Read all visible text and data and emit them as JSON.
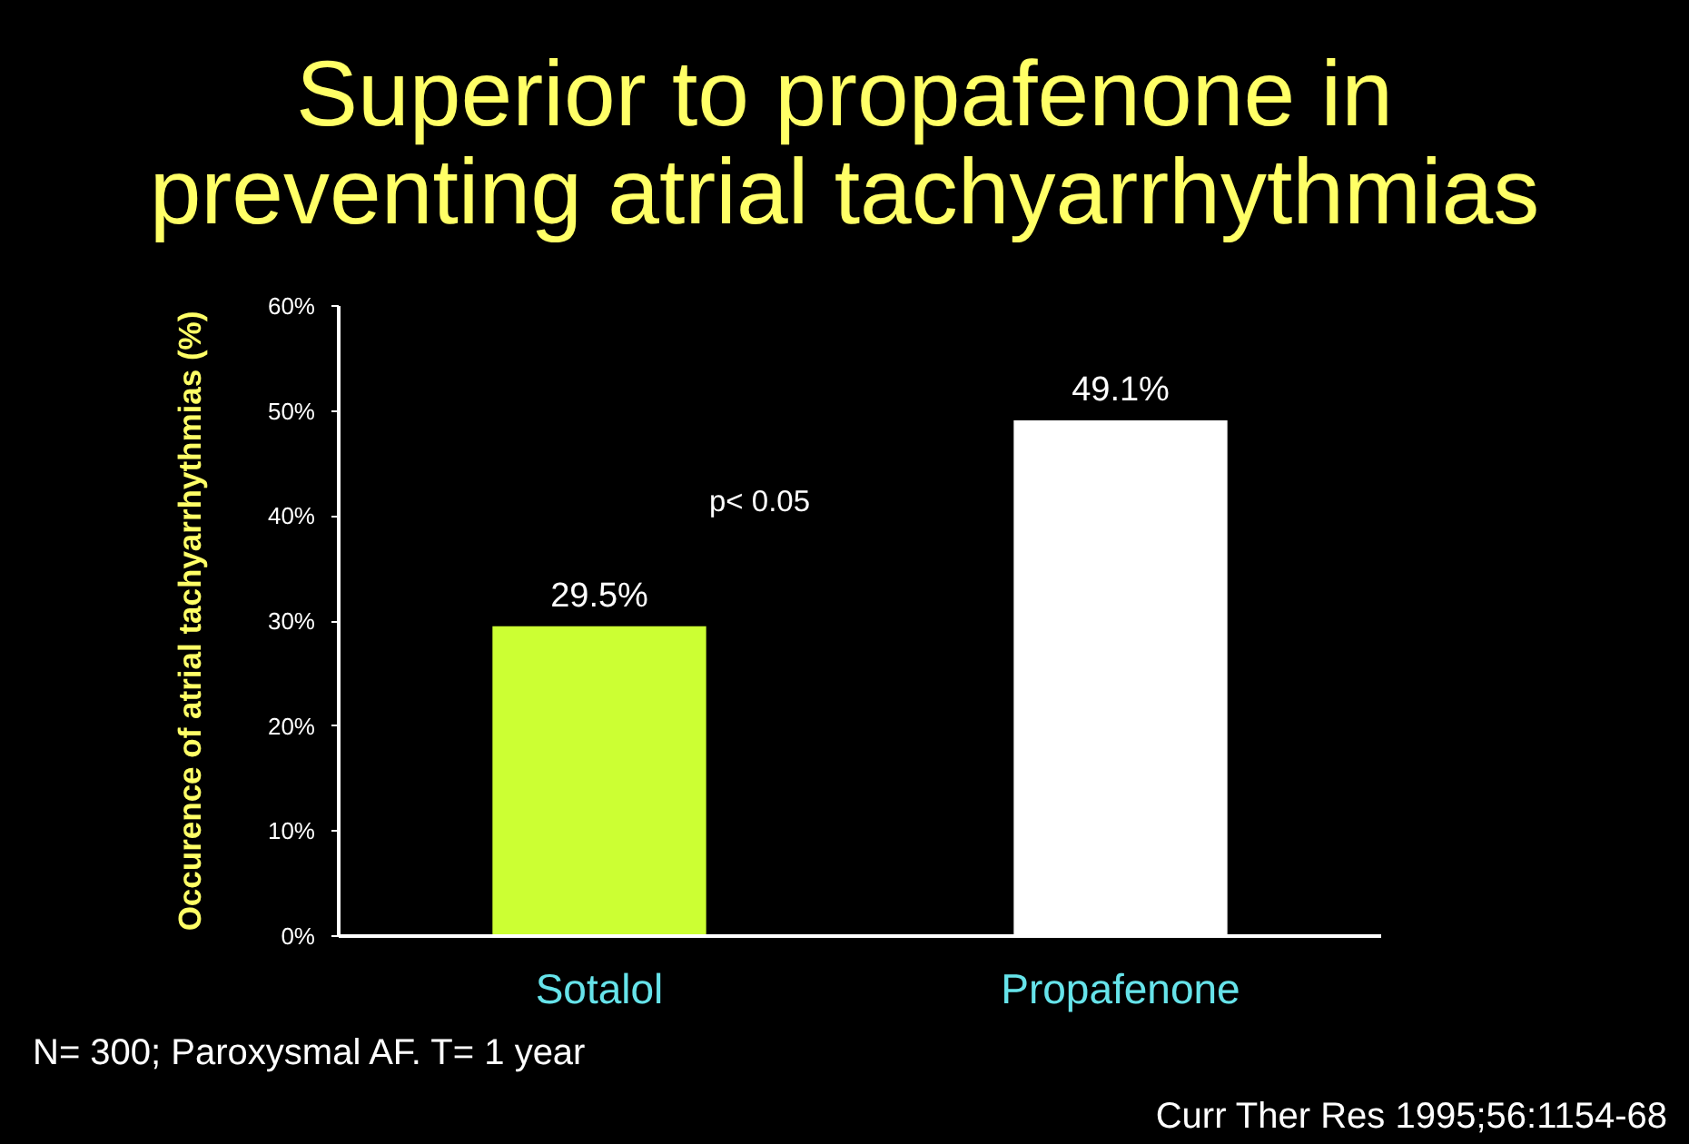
{
  "chart_data": {
    "type": "bar",
    "title": "Superior to propafenone in preventing atrial tachyarrhythmias",
    "ylabel": "Occurence of atrial tachyarrhythmias (%)",
    "categories": [
      "Sotalol",
      "Propafenone"
    ],
    "values": [
      29.5,
      49.1
    ],
    "colors": [
      "#ccff33",
      "#ffffff"
    ],
    "value_labels": [
      "29.5%",
      "49.1%"
    ],
    "ylim": [
      0,
      60
    ],
    "yticks": [
      {
        "value": 0,
        "label": "0%"
      },
      {
        "value": 10,
        "label": "10%"
      },
      {
        "value": 20,
        "label": "20%"
      },
      {
        "value": 30,
        "label": "30%"
      },
      {
        "value": 40,
        "label": "40%"
      },
      {
        "value": 50,
        "label": "50%"
      },
      {
        "value": 60,
        "label": "60%"
      }
    ],
    "annotations": [
      "p< 0.05",
      "N= 300; Paroxysmal AF. T= 1 year",
      "Curr Ther Res 1995;56:1154-68"
    ]
  }
}
